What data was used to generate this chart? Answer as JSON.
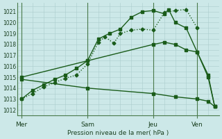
{
  "background_color": "#cce8e8",
  "grid_color": "#aacccc",
  "line_color": "#1a5c1a",
  "vline_color": "#4a7a4a",
  "x_tick_labels": [
    "Mer",
    "Sam",
    "Jeu",
    "Ven"
  ],
  "x_tick_positions": [
    0,
    30,
    60,
    80
  ],
  "ylabel": "Pression niveau de la mer( hPa )",
  "ylim": [
    1011.5,
    1021.8
  ],
  "yticks": [
    1012,
    1013,
    1014,
    1015,
    1016,
    1017,
    1018,
    1019,
    1020,
    1021
  ],
  "xlim": [
    -2,
    90
  ],
  "vlines": [
    0,
    30,
    60,
    80
  ],
  "series1_x": [
    0,
    5,
    10,
    15,
    20,
    25,
    30,
    35,
    38,
    42,
    45,
    50,
    55,
    60,
    65,
    70,
    75,
    80
  ],
  "series1_y": [
    1013.0,
    1013.5,
    1014.1,
    1014.5,
    1014.9,
    1015.2,
    1016.2,
    1018.2,
    1018.7,
    1018.1,
    1019.0,
    1019.3,
    1019.4,
    1019.3,
    1020.9,
    1021.1,
    1021.2,
    1019.5
  ],
  "series1_style": "dotted",
  "series1_marker": "D",
  "series2_x": [
    0,
    5,
    10,
    15,
    20,
    25,
    30,
    35,
    40,
    45,
    50,
    55,
    60,
    65,
    67,
    70,
    75,
    80,
    85,
    88
  ],
  "series2_y": [
    1013.0,
    1013.8,
    1014.3,
    1014.8,
    1015.2,
    1015.8,
    1016.5,
    1018.5,
    1019.0,
    1019.4,
    1020.5,
    1021.0,
    1021.1,
    1020.8,
    1021.2,
    1020.0,
    1019.5,
    1017.3,
    1015.2,
    1012.3
  ],
  "series2_style": "solid",
  "series2_marker": "s",
  "series3_x": [
    0,
    30,
    60,
    65,
    70,
    75,
    80,
    85,
    88
  ],
  "series3_y": [
    1015.0,
    1016.5,
    1018.0,
    1018.2,
    1018.0,
    1017.5,
    1017.3,
    1015.0,
    1012.3
  ],
  "series3_style": "solid",
  "series3_marker": "s",
  "series4_x": [
    0,
    30,
    60,
    70,
    80,
    85,
    88
  ],
  "series4_y": [
    1014.8,
    1014.0,
    1013.5,
    1013.2,
    1013.0,
    1012.8,
    1012.3
  ],
  "series4_style": "solid",
  "series4_marker": "s",
  "marker_size": 2.5,
  "linewidth": 1.0,
  "tick_fontsize": 5.5,
  "xlabel_fontsize": 6.5
}
